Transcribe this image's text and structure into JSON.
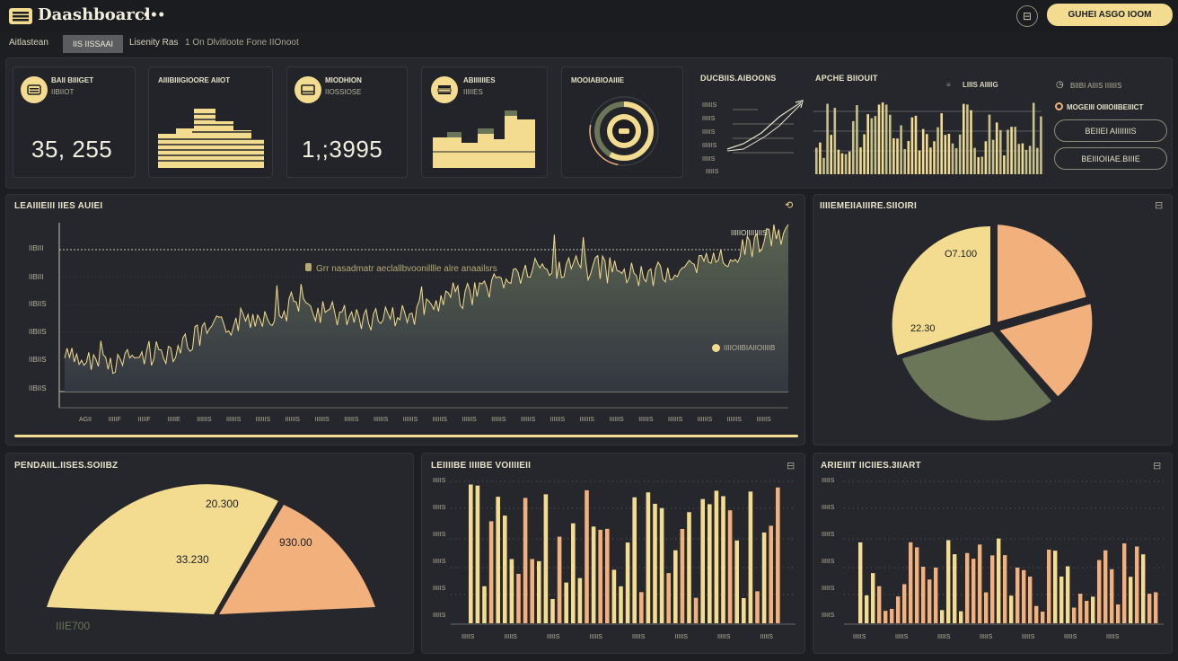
{
  "app": {
    "title": "Daashboarcl",
    "more_icon": "more-dots-icon",
    "logo_icon": "menu-logo-icon"
  },
  "header": {
    "circle_button_icon": "settings-circle-icon",
    "circle_button_label": "⊟",
    "cta_label": "GUHEI ASGO IOOM"
  },
  "tabs": [
    {
      "label": "Aitlastean",
      "active": false
    },
    {
      "label": "IIS IISSAAI",
      "active": true
    },
    {
      "label": "Lisenity Ras",
      "active": false
    },
    {
      "label": "1 On Dlvitloote Fone IIOnoot",
      "active": false
    }
  ],
  "kpis": [
    {
      "title": "BAII BIIIGET",
      "subtitle": "IIBIIOT",
      "value": "35, 255",
      "icon": "wallet-icon"
    },
    {
      "title": "AIIIBIIIGIOORE AIIOT",
      "chart": "step-area-1"
    },
    {
      "title": "MIODHION",
      "subtitle": "IIOSSIOSE",
      "value": "1,;3995",
      "icon": "card-icon"
    },
    {
      "title": "ABIIIIIIES",
      "subtitle": "IIIIIES",
      "chart": "step-area-2",
      "icon": "stack-icon"
    },
    {
      "title": "MOOIABIOAIIIE",
      "gauge": true,
      "icon": "gauge-icon"
    }
  ],
  "trend_widget": {
    "title": "DUCBIIS.AIBOONS",
    "y_ticks": [
      "IIIIIIS",
      "IIIIIS",
      "IIIIIS",
      "IIIIIIS",
      "IIIIIS",
      "IIIIIS"
    ]
  },
  "apche_widget": {
    "title": "APCHE BIIOUIT",
    "legend_label": "LIIIS AIIIIG",
    "legend_icon": "legend-lines-icon"
  },
  "right_controls": {
    "items": [
      {
        "label": "BIIBI AIIIS IIIIIIS",
        "icon": "clock-icon"
      },
      {
        "label": "MOGEIII OIIIOIIBEIIICT",
        "icon": "record-icon"
      }
    ],
    "buttons": [
      "BEIIEI AIIIIIIIS",
      "BEIIIOIIAE.BIIIE"
    ]
  },
  "main_chart": {
    "title": "LEAIIIEIII IIES AUIEI",
    "corner_icon": "refresh-icon",
    "y_ticks": [
      "IIBIII",
      "IIBIII",
      "IIBIIS",
      "IIBIIS",
      "IIBIIS",
      "IIBIIS"
    ],
    "x_ticks": [
      "AGII",
      "IIIIIF",
      "IIIIIF",
      "IIIIIE",
      "IIIIIIS",
      "IIIIIIS",
      "IIIIIIS",
      "IIIIIIS",
      "IIIIIIS",
      "IIIIIIS",
      "IIIIIIS",
      "IIIIIIS",
      "IIIIIIS",
      "IIIIIIS",
      "IIIIIIS",
      "IIIIIIS",
      "IIIIIIS",
      "IIIIIIS",
      "IIIIIIS",
      "IIIIIIS",
      "IIIIIIS",
      "IIIIIIS",
      "IIIIIIS",
      "IIIIIIS"
    ],
    "annotation_top": "IIIIIOIIIIIIIIS",
    "annotation_mid": "Grr nasadmatr aeclallbvoonilllle alre anaailsrs",
    "annotation_low": "IIIIOIIBIAIIOIIIIB",
    "annotation_icon": "info-dot-icon"
  },
  "pie_widget": {
    "title": "IIIIEMEIIAIIIRE.SIIOIRI",
    "corner_icon": "panel-icon",
    "labels": [
      "O7.100",
      "22.30"
    ]
  },
  "semi_widget": {
    "title": "PENDAIIL.IISES.SOIIBZ",
    "labels": [
      "20.300",
      "33.230",
      "930.00"
    ],
    "footer": "IIIE700"
  },
  "bar_widget_1": {
    "title": "LEIIIIBE IIIIBE VOIIIIEII",
    "corner_icon": "panel-icon",
    "y_ticks": [
      "IIIIIS",
      "IIIIIS",
      "IIIIIS",
      "IIIIIS",
      "IIIIIS",
      "IIIIIS"
    ],
    "x_ticks": [
      "IIIIIS",
      "IIIIIS",
      "IIIIIS",
      "IIIIIS",
      "IIIIIS",
      "IIIIIS",
      "IIIIIS",
      "IIIIIS"
    ]
  },
  "bar_widget_2": {
    "title": "ARIEIIIT IICIIES.3IIART",
    "corner_icon": "panel-icon",
    "y_ticks": [
      "IIIIIS",
      "IIIIIS",
      "IIIIIS",
      "IIIIIS",
      "IIIIIS",
      "IIIIIS"
    ],
    "x_ticks": [
      "IIIIIS",
      "IIIIIS",
      "IIIIIS",
      "IIIIIS",
      "IIIIIS",
      "IIIIIS",
      "IIIIIS"
    ]
  },
  "colors": {
    "accent": "#f3dc8f",
    "peach": "#f2b07d",
    "olive": "#6b7558",
    "bg": "#1c1e22",
    "panel": "#25272c"
  }
}
